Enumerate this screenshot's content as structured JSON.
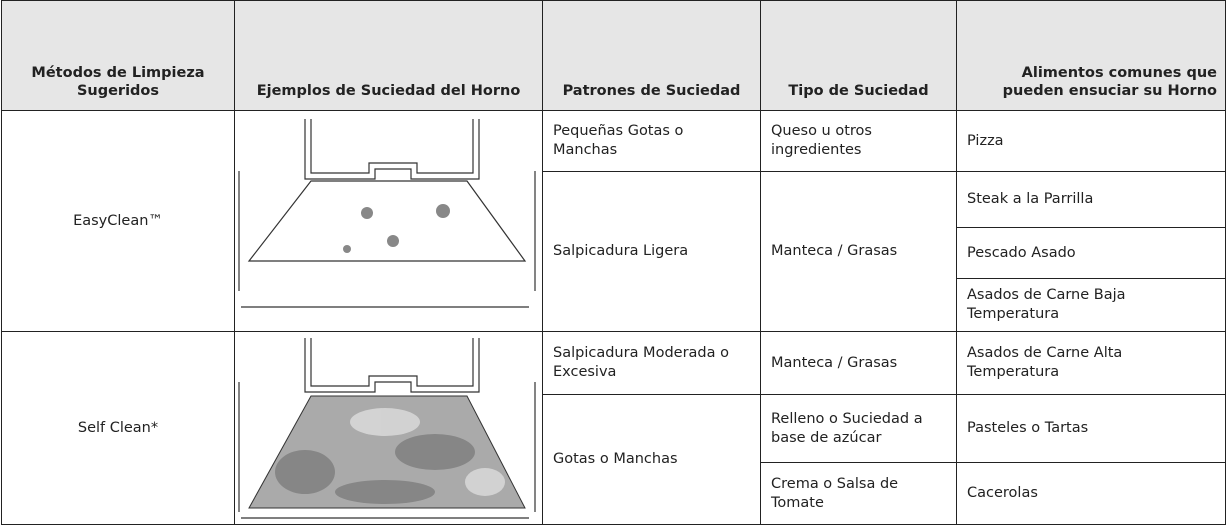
{
  "table": {
    "columns": [
      "Métodos de Limpieza Sugeridos",
      "Ejemplos de Suciedad del Horno",
      "Patrones de Suciedad",
      "Tipo de Suciedad",
      "Alimentos comunes que pueden ensuciar su Horno"
    ],
    "rows": [
      {
        "method": "EasyClean™",
        "pattern": "Pequeñas Gotas o Manchas",
        "type": "Queso u otros ingredientes",
        "food": "Pizza"
      },
      {
        "pattern": "Salpicadura Ligera",
        "type": "Manteca / Grasas",
        "food": "Steak a la Parrilla"
      },
      {
        "food": "Pescado Asado"
      },
      {
        "food": "Asados de Carne Baja Temperatura"
      },
      {
        "method": "Self Clean*",
        "pattern": "Salpicadura Moderada o Excesiva",
        "type": "Manteca / Grasas",
        "food": "Asados de Carne Alta Temperatura"
      },
      {
        "pattern": "Gotas o Manchas",
        "type": "Relleno o Suciedad a base de azúcar",
        "food": "Pasteles o Tartas"
      },
      {
        "type": "Crema o Salsa de Tomate",
        "food": "Cacerolas"
      }
    ]
  }
}
